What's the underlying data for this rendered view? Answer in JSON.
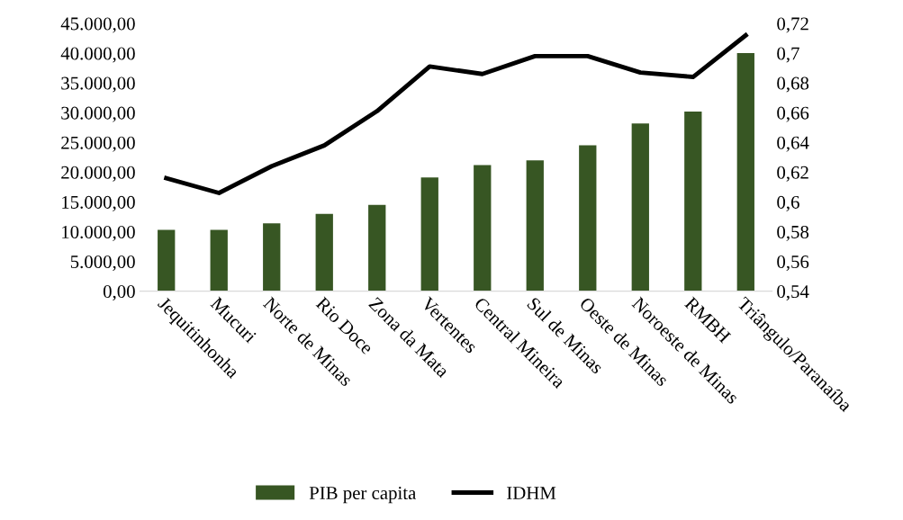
{
  "chart_data": {
    "type": "bar",
    "categories": [
      "Jequitinhonha",
      "Mucuri",
      "Norte de Minas",
      "Rio Doce",
      "Zona da Mata",
      "Vertentes",
      "Central Mineira",
      "Sul de Minas",
      "Oeste de Minas",
      "Noroeste de Minas",
      "RMBH",
      "Triângulo/Paranaíba"
    ],
    "series": [
      {
        "name": "PIB per capita",
        "color": "#375623",
        "values": [
          10300,
          10300,
          11400,
          13000,
          14500,
          19100,
          21200,
          22000,
          24500,
          28200,
          30200,
          40000
        ]
      },
      {
        "name": "IDHM",
        "color": "#000000",
        "type": "line",
        "axis": "y2",
        "values": [
          0.616,
          0.606,
          0.624,
          0.638,
          0.661,
          0.691,
          0.686,
          0.698,
          0.698,
          0.687,
          0.684,
          0.712
        ]
      }
    ],
    "ylim": [
      0,
      45000
    ],
    "yticks": [
      {
        "value": 0,
        "label": "0,00"
      },
      {
        "value": 5000,
        "label": "5.000,00"
      },
      {
        "value": 10000,
        "label": "10.000,00"
      },
      {
        "value": 15000,
        "label": "15.000,00"
      },
      {
        "value": 20000,
        "label": "20.000,00"
      },
      {
        "value": 25000,
        "label": "25.000,00"
      },
      {
        "value": 30000,
        "label": "30.000,00"
      },
      {
        "value": 35000,
        "label": "35.000,00"
      },
      {
        "value": 40000,
        "label": "40.000,00"
      },
      {
        "value": 45000,
        "label": "45.000,00"
      }
    ],
    "y2lim": [
      0.54,
      0.72
    ],
    "y2ticks": [
      {
        "value": 0.54,
        "label": "0,54"
      },
      {
        "value": 0.56,
        "label": "0,56"
      },
      {
        "value": 0.58,
        "label": "0,58"
      },
      {
        "value": 0.6,
        "label": "0,6"
      },
      {
        "value": 0.62,
        "label": "0,62"
      },
      {
        "value": 0.64,
        "label": "0,64"
      },
      {
        "value": 0.66,
        "label": "0,66"
      },
      {
        "value": 0.68,
        "label": "0,68"
      },
      {
        "value": 0.7,
        "label": "0,7"
      },
      {
        "value": 0.72,
        "label": "0,72"
      }
    ],
    "grid": false,
    "legend": "bottom",
    "marker": "none",
    "line_style": "solid"
  }
}
